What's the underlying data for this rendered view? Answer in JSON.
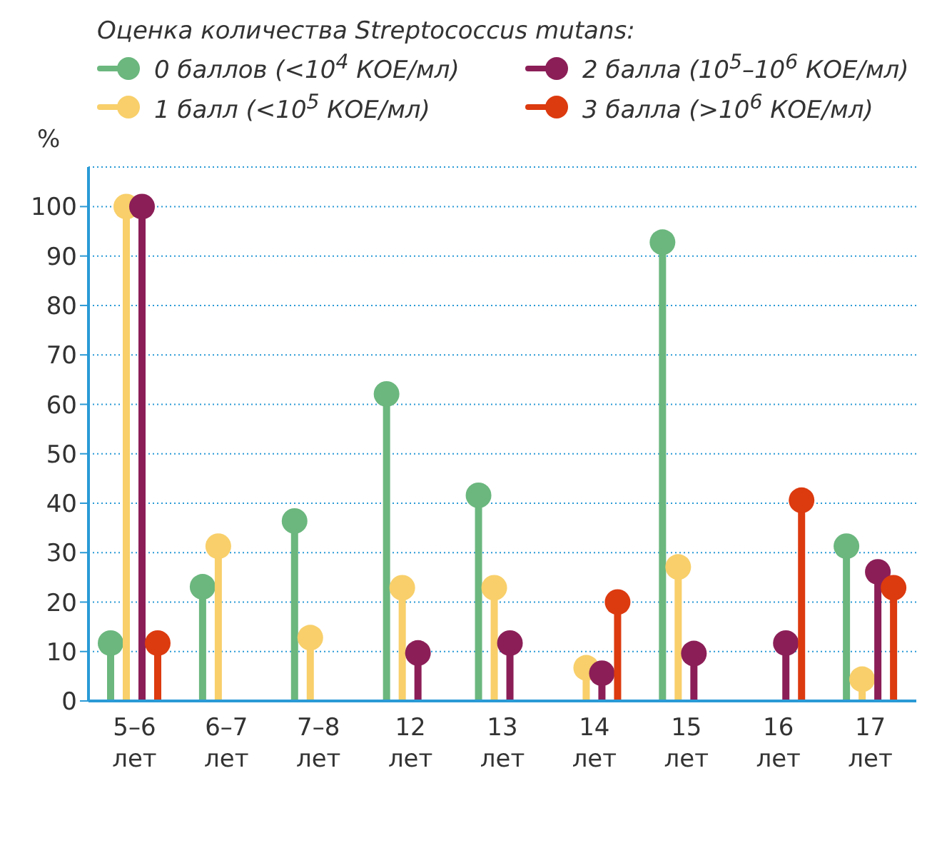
{
  "chart_data": {
    "type": "lollipop",
    "legend_title": "Оценка количества Streptococcus mutans:",
    "ylabel": "%",
    "categories": [
      "5–6 лет",
      "6–7 лет",
      "7–8 лет",
      "12 лет",
      "13 лет",
      "14 лет",
      "15 лет",
      "16 лет",
      "17 лет"
    ],
    "series": [
      {
        "name": "0 баллов (<10$^{4}$ КОЕ/мл)",
        "color": "#6bb77e",
        "values": [
          11.7,
          23.1,
          36.4,
          62.1,
          41.6,
          null,
          92.8,
          null,
          31.3
        ]
      },
      {
        "name": "1 балл (<10$^{5}$ КОЕ/мл)",
        "color": "#f8cf6a",
        "values": [
          100,
          31.3,
          12.8,
          22.9,
          22.9,
          6.7,
          27.1,
          null,
          4.4
        ]
      },
      {
        "name": "2 балла (10$^{5}$–10$^{6}$ КОЕ/мл)",
        "color": "#8b1e57",
        "values": [
          100,
          null,
          null,
          9.7,
          11.7,
          5.6,
          9.6,
          11.7,
          26.1
        ]
      },
      {
        "name": "3 балла (>10$^{6}$ КОЕ/мл)",
        "color": "#dc3a0f",
        "values": [
          11.7,
          null,
          null,
          null,
          null,
          20,
          null,
          40.6,
          22.9
        ]
      }
    ],
    "ylim": [
      0,
      108
    ],
    "yticks": [
      0,
      10,
      20,
      30,
      40,
      50,
      60,
      70,
      80,
      90,
      100
    ],
    "grid": "y",
    "legend": "top",
    "marker": "circle"
  }
}
